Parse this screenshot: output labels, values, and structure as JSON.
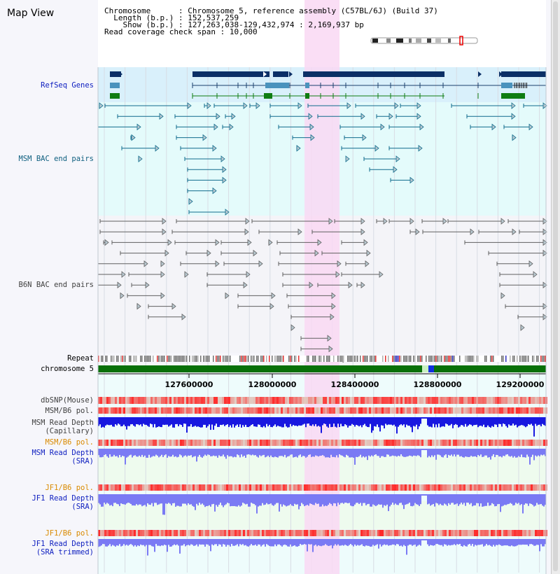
{
  "title": "Map View",
  "info": {
    "chromosome_key": "Chromosome",
    "chromosome_val": "Chromosome 5, reference assembly (C57BL/6J) (Build 37)",
    "length_key": "Length (b.p.)",
    "length_val": "152,537,259",
    "show_key": "Show (b.p.)",
    "show_val": "127,263,038-129,432,974 : 2,169,937 bp",
    "span_key": "Read coverage check span",
    "span_val": "10,000"
  },
  "tracks": {
    "refseq": "RefSeq Genes",
    "msm_bac": "MSM BAC end pairs",
    "b6n_bac": "B6N BAC end pairs",
    "repeat": "Repeat",
    "chromosome": "chromosome 5",
    "dbsnp": "dbSNP(Mouse)",
    "msm_b6_pol_1": "MSM/B6 pol.",
    "msm_read_cap": "MSM Read Depth\n(Capillary)",
    "msm_b6_pol_2": "MSM/B6 pol.",
    "msm_read_sra": "MSM Read Depth\n(SRA)",
    "jf1_b6_pol_1": "JF1/B6 pol.",
    "jf1_read_sra": "JF1 Read Depth\n(SRA)",
    "jf1_b6_pol_2": "JF1/B6 pol.",
    "jf1_read_trim": "JF1 Read Depth\n(SRA trimmed)"
  },
  "axis": {
    "ticks": [
      "127600000",
      "128000000",
      "128400000",
      "128800000",
      "129200000"
    ]
  },
  "colors": {
    "highlight": "#f9d8f3",
    "refseq_bg": "#d9f0fb",
    "bac_bg": "#e4fbfb",
    "gene_dark": "#0b2f66",
    "gene_mid": "#4a93bd",
    "gene_green": "#0f7d12",
    "msm_line": "#0f6b8c",
    "b6n_line": "#606060",
    "chrom_green": "#087008",
    "snp_red": "#e02020",
    "depth_blue": "#1818e0",
    "depth_light": "#7a7af4"
  }
}
